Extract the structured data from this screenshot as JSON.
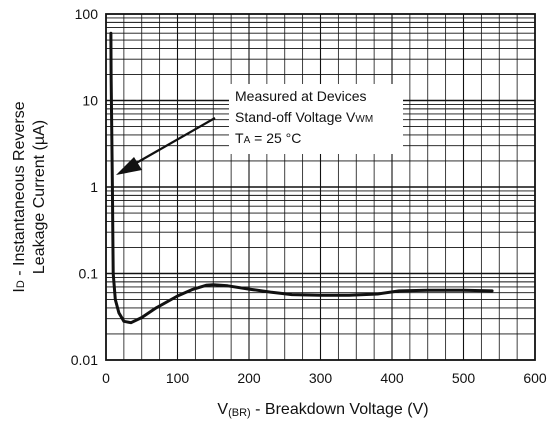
{
  "chart_data": {
    "type": "line",
    "x_scale": "linear",
    "y_scale": "log",
    "xlim": [
      0,
      600
    ],
    "ylim": [
      0.01,
      100
    ],
    "grid": true,
    "x_ticks": [
      "0",
      "100",
      "200",
      "300",
      "400",
      "500",
      "600"
    ],
    "y_ticks": [
      "0.01",
      "0.1",
      "1",
      "10",
      "100"
    ],
    "xlabel": {
      "prefix": "V",
      "sub": "(BR)",
      "suffix": " - Breakdown Voltage (V)"
    },
    "ylabel": {
      "line1": "Instantaneous Reverse",
      "line2": "Leakage Current (µA)",
      "prefix": "I",
      "sub": "D",
      "suffix": " - "
    },
    "annotation": {
      "line1": "Measured at Devices",
      "line2_prefix": "Stand-off Voltage V",
      "line2_sub": "WM",
      "line3_prefix": "T",
      "line3_sub": "A",
      "line3_suffix": " = 25 °C"
    },
    "series": [
      {
        "color": "#111111",
        "points": [
          [
            6.8,
            60
          ],
          [
            7.2,
            20
          ],
          [
            8,
            5
          ],
          [
            9,
            1
          ],
          [
            9.5,
            0.3
          ],
          [
            10,
            0.1
          ],
          [
            13,
            0.05
          ],
          [
            18,
            0.035
          ],
          [
            25,
            0.028
          ],
          [
            35,
            0.027
          ],
          [
            50,
            0.031
          ],
          [
            70,
            0.04
          ],
          [
            100,
            0.055
          ],
          [
            120,
            0.065
          ],
          [
            140,
            0.073
          ],
          [
            150,
            0.074
          ],
          [
            170,
            0.072
          ],
          [
            200,
            0.066
          ],
          [
            230,
            0.061
          ],
          [
            260,
            0.057
          ],
          [
            300,
            0.056
          ],
          [
            340,
            0.056
          ],
          [
            380,
            0.058
          ],
          [
            410,
            0.063
          ],
          [
            450,
            0.064
          ],
          [
            500,
            0.064
          ],
          [
            540,
            0.063
          ]
        ]
      }
    ]
  }
}
